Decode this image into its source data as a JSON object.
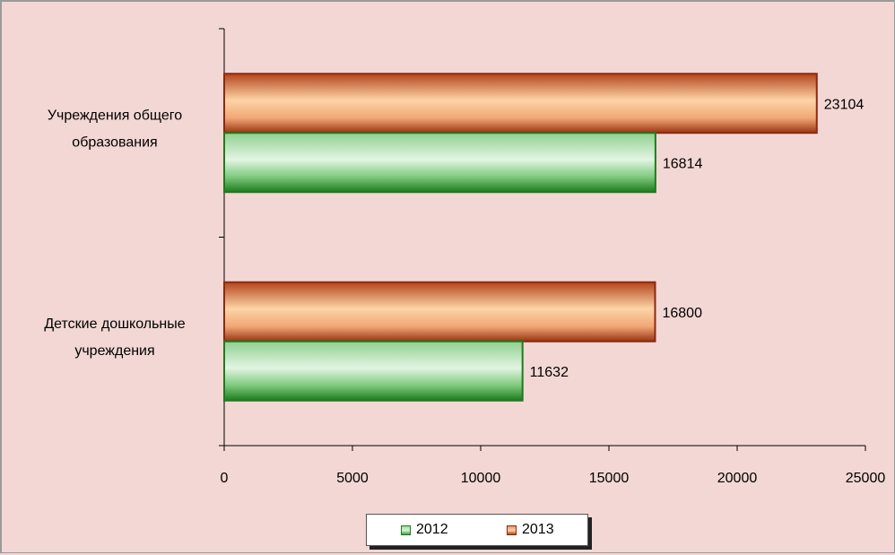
{
  "chart_data": {
    "type": "bar",
    "orientation": "horizontal",
    "categories": [
      "Учреждения общего образования",
      "Детские дошкольные учреждения"
    ],
    "category_lines": [
      [
        "Учреждения общего",
        "образования"
      ],
      [
        "Детские дошкольные",
        "учреждения"
      ]
    ],
    "series": [
      {
        "name": "2012",
        "values": [
          16814,
          11632
        ]
      },
      {
        "name": "2013",
        "values": [
          23104,
          16800
        ]
      }
    ],
    "xlim": [
      0,
      25000
    ],
    "xticks": [
      0,
      5000,
      10000,
      15000,
      20000,
      25000
    ],
    "grid": false,
    "legend_position": "bottom",
    "colors": {
      "2012": "#2e8b2e",
      "2013": "#b5441c",
      "background": "#f2d7d5"
    }
  },
  "legend": {
    "items": [
      "2012",
      "2013"
    ]
  }
}
